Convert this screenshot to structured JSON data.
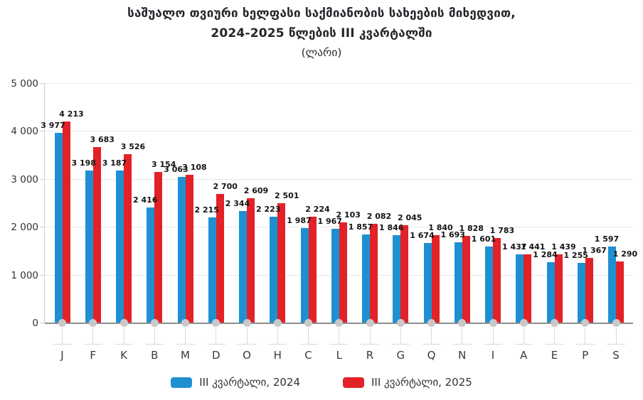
{
  "title": {
    "line1": "საშუალო თვიური ხელფასი საქმიანობის სახეების მიხედვით,",
    "line2": "2024-2025 წლების III კვარტალში",
    "line3": "(ლარი)"
  },
  "chart_data": {
    "type": "bar",
    "categories": [
      "J",
      "F",
      "K",
      "B",
      "M",
      "D",
      "O",
      "H",
      "C",
      "L",
      "R",
      "G",
      "Q",
      "N",
      "I",
      "A",
      "E",
      "P",
      "S"
    ],
    "series": [
      {
        "name": "III კვარტალი, 2024",
        "color": "#1E90D2",
        "values": [
          3977,
          3198,
          3187,
          2416,
          3063,
          2215,
          2344,
          2223,
          1987,
          1967,
          1857,
          1846,
          1674,
          1693,
          1601,
          1437,
          1284,
          1255,
          1597
        ]
      },
      {
        "name": "III კვარტალი, 2025",
        "color": "#E32128",
        "values": [
          4213,
          3683,
          3526,
          3154,
          3108,
          2700,
          2609,
          2501,
          2224,
          2103,
          2082,
          2045,
          1840,
          1828,
          1783,
          1441,
          1439,
          1367,
          1290
        ]
      }
    ],
    "ylim": [
      0,
      5000
    ],
    "ytick_step": 1000,
    "grid": true,
    "value_labels": true,
    "legend_position": "bottom"
  },
  "style_colors": {
    "grid": "#E8E8E8",
    "axis": "#CFCFCF",
    "baseline": "#8E8E8E",
    "category_marker": "#C8C8C8",
    "text": "#333333"
  }
}
